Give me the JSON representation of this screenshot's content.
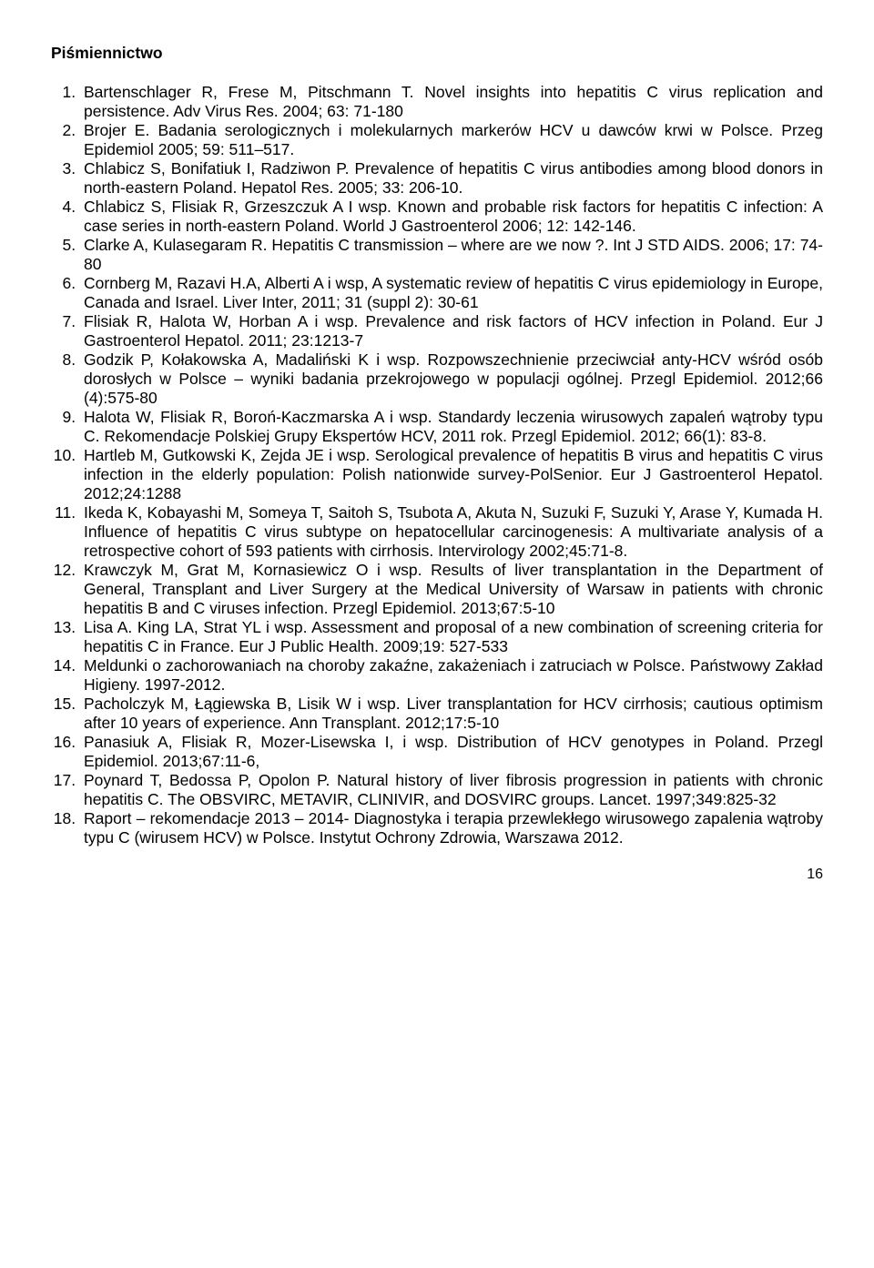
{
  "heading": "Piśmiennictwo",
  "references": [
    "Bartenschlager R, Frese M, Pitschmann T. Novel insights into hepatitis C virus replication and persistence. Adv Virus Res. 2004; 63: 71-180",
    "Brojer E. Badania serologicznych i molekularnych markerów HCV u dawców krwi w Polsce. Przeg Epidemiol 2005; 59: 511–517.",
    "Chlabicz S, Bonifatiuk I, Radziwon P. Prevalence of hepatitis C virus antibodies among blood donors in north-eastern Poland. Hepatol Res. 2005; 33: 206-10.",
    "Chlabicz S, Flisiak R, Grzeszczuk A I wsp. Known and probable risk factors for hepatitis C infection: A case series in north-eastern Poland. World J Gastroenterol 2006; 12: 142-146.",
    "Clarke A, Kulasegaram R. Hepatitis C transmission – where are we now ?. Int J STD AIDS. 2006; 17: 74-80",
    "Cornberg M, Razavi H.A, Alberti A i wsp, A systematic review of hepatitis C virus epidemiology in Europe, Canada and Israel. Liver Inter, 2011; 31 (suppl 2): 30-61",
    "Flisiak R, Halota W, Horban A i wsp. Prevalence and risk factors of HCV infection in Poland. Eur J Gastroenterol Hepatol. 2011; 23:1213-7",
    "Godzik P, Kołakowska A, Madaliński K i wsp. Rozpowszechnienie przeciwciał anty-HCV wśród osób dorosłych w Polsce – wyniki badania przekrojowego w populacji ogólnej. Przegl Epidemiol. 2012;66 (4):575-80",
    "Halota W, Flisiak R, Boroń-Kaczmarska A i wsp. Standardy leczenia wirusowych zapaleń wątroby typu C. Rekomendacje Polskiej Grupy Ekspertów HCV, 2011 rok. Przegl Epidemiol. 2012; 66(1): 83-8.",
    "Hartleb M, Gutkowski K, Zejda JE i wsp. Serological prevalence of hepatitis B virus and hepatitis C virus infection in the elderly population: Polish nationwide survey-PolSenior. Eur J Gastroenterol Hepatol. 2012;24:1288",
    "Ikeda K, Kobayashi M, Someya T, Saitoh S, Tsubota A, Akuta N, Suzuki F, Suzuki Y, Arase Y, Kumada H. Influence of hepatitis C virus subtype on hepatocellular carcinogenesis: A multivariate analysis of a retrospective cohort of 593 patients with cirrhosis. Intervirology 2002;45:71-8.",
    "Krawczyk M, Grat M, Kornasiewicz O i wsp. Results of liver transplantation in the Department of General, Transplant and Liver Surgery at the Medical University of Warsaw in patients with chronic hepatitis B and C viruses infection. Przegl Epidemiol. 2013;67:5-10",
    "Lisa A. King LA, Strat YL i wsp. Assessment and proposal of a new combination of screening criteria for hepatitis C in France. Eur J Public Health. 2009;19: 527-533",
    "Meldunki o zachorowaniach na choroby zakaźne, zakażeniach i zatruciach w Polsce. Państwowy Zakład Higieny. 1997-2012.",
    "Pacholczyk M, Łągiewska B, Lisik W i wsp. Liver transplantation for HCV cirrhosis; cautious optimism after 10 years of experience. Ann Transplant. 2012;17:5-10",
    "Panasiuk A, Flisiak R, Mozer-Lisewska I, i wsp. Distribution of HCV genotypes in Poland. Przegl Epidemiol. 2013;67:11-6,",
    "Poynard T, Bedossa P, Opolon P. Natural history of liver fibrosis progression in patients with chronic hepatitis C. The OBSVIRC, METAVIR, CLINIVIR, and DOSVIRC groups. Lancet. 1997;349:825-32",
    "Raport – rekomendacje 2013 – 2014- Diagnostyka i terapia przewlekłego wirusowego zapalenia wątroby typu C (wirusem HCV) w Polsce. Instytut Ochrony Zdrowia, Warszawa 2012."
  ],
  "page_number": "16"
}
